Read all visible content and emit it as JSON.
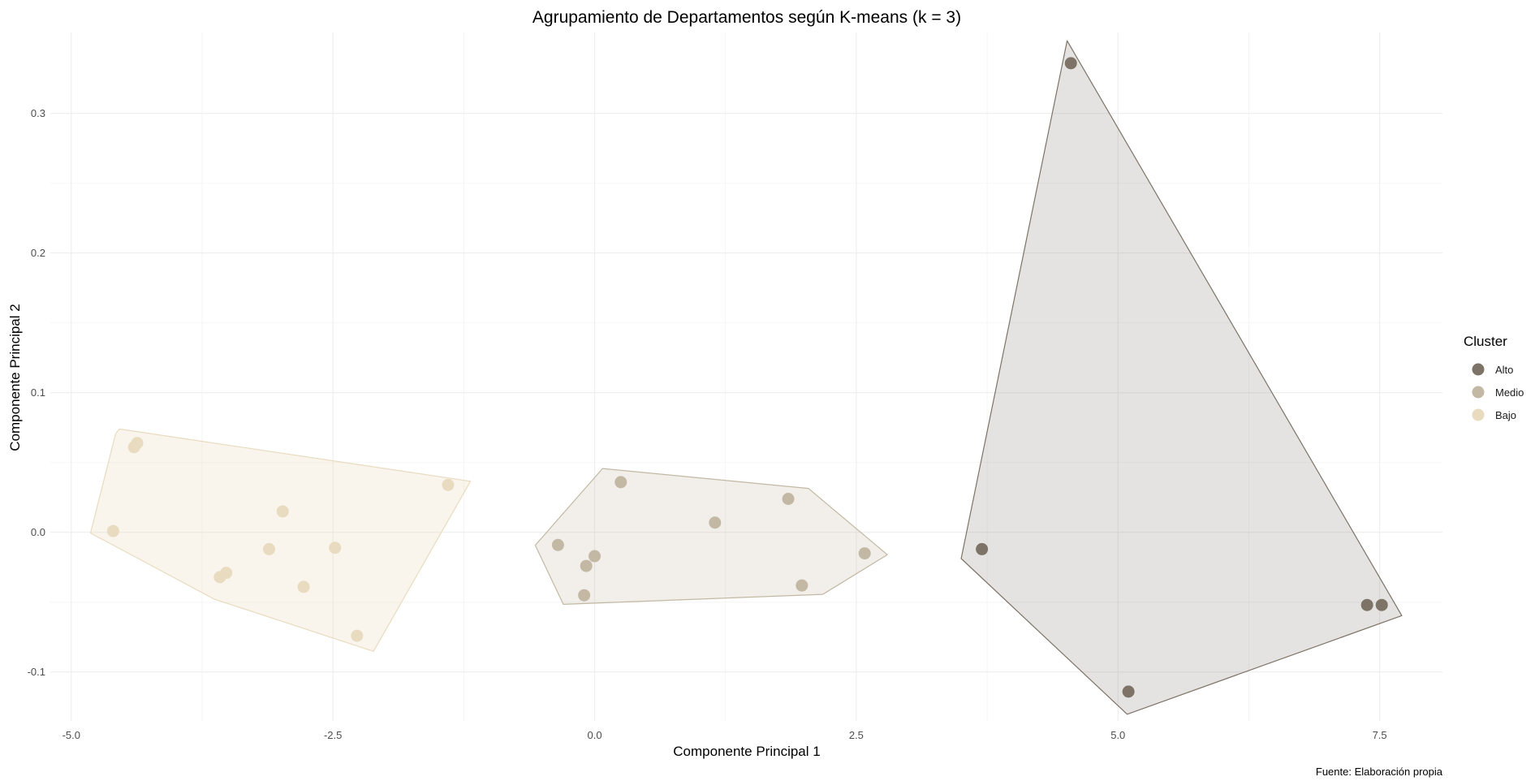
{
  "chart_data": {
    "type": "scatter",
    "title": "Agrupamiento de Departamentos según K-means (k = 3)",
    "xlabel": "Componente Principal 1",
    "ylabel": "Componente Principal 2",
    "caption": "Fuente: Elaboración propia",
    "xlim": [
      -5.2,
      8.1
    ],
    "ylim": [
      -0.135,
      0.358
    ],
    "x_ticks": [
      -5.0,
      -2.5,
      0.0,
      2.5,
      5.0,
      7.5
    ],
    "x_tick_labels": [
      "-5.0",
      "-2.5",
      "0.0",
      "2.5",
      "5.0",
      "7.5"
    ],
    "y_ticks": [
      -0.1,
      0.0,
      0.1,
      0.2,
      0.3
    ],
    "y_tick_labels": [
      "-0.1",
      "0.0",
      "0.1",
      "0.2",
      "0.3"
    ],
    "grid": true,
    "legend": {
      "title": "Cluster",
      "position": "right"
    },
    "series": [
      {
        "name": "Alto",
        "color": "#7d7367",
        "points": [
          [
            4.55,
            0.336
          ],
          [
            3.7,
            -0.012
          ],
          [
            5.1,
            -0.114
          ],
          [
            7.38,
            -0.052
          ],
          [
            7.52,
            -0.052
          ]
        ]
      },
      {
        "name": "Medio",
        "color": "#c2b8a3",
        "points": [
          [
            0.25,
            0.036
          ],
          [
            1.15,
            0.007
          ],
          [
            1.85,
            0.024
          ],
          [
            -0.35,
            -0.009
          ],
          [
            0.0,
            -0.017
          ],
          [
            -0.08,
            -0.024
          ],
          [
            -0.1,
            -0.045
          ],
          [
            2.58,
            -0.015
          ],
          [
            1.98,
            -0.038
          ]
        ]
      },
      {
        "name": "Bajo",
        "color": "#e8dbbf",
        "points": [
          [
            -4.37,
            0.064
          ],
          [
            -4.4,
            0.061
          ],
          [
            -4.6,
            0.001
          ],
          [
            -1.4,
            0.034
          ],
          [
            -2.98,
            0.015
          ],
          [
            -3.11,
            -0.012
          ],
          [
            -2.48,
            -0.011
          ],
          [
            -3.52,
            -0.029
          ],
          [
            -3.58,
            -0.032
          ],
          [
            -2.78,
            -0.039
          ],
          [
            -2.27,
            -0.074
          ]
        ]
      }
    ]
  }
}
